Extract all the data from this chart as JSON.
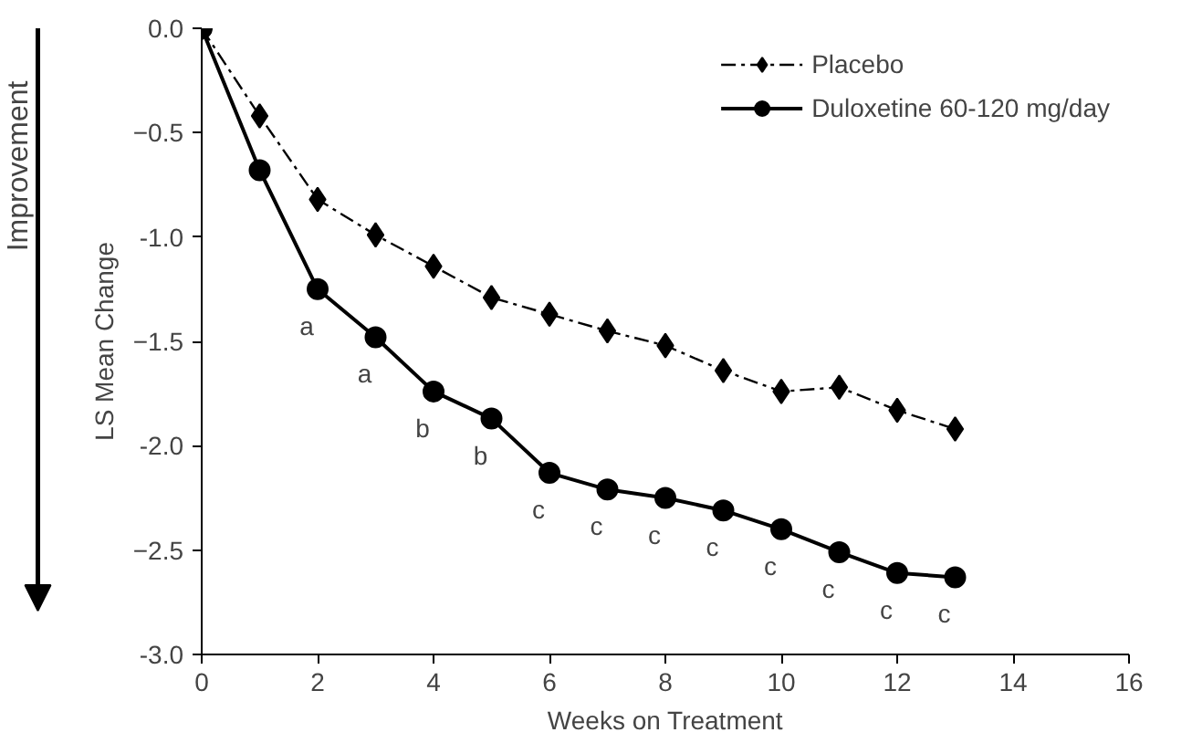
{
  "chart_data": {
    "type": "line",
    "xlabel": "Weeks on Treatment",
    "ylabel": "LS Mean Change",
    "x": [
      0,
      1,
      2,
      3,
      4,
      5,
      6,
      7,
      8,
      9,
      10,
      11,
      12,
      13
    ],
    "series": [
      {
        "name": "Placebo",
        "color": "#000000",
        "marker": "diamond",
        "line_style": "dashed",
        "values": [
          0,
          -0.42,
          -0.82,
          -0.99,
          -1.14,
          -1.29,
          -1.37,
          -1.45,
          -1.52,
          -1.64,
          -1.74,
          -1.72,
          -1.83,
          -1.92
        ]
      },
      {
        "name": "Duloxetine 60-120 mg/day",
        "color": "#000000",
        "marker": "circle",
        "line_style": "solid",
        "values": [
          0,
          -0.68,
          -1.25,
          -1.48,
          -1.74,
          -1.87,
          -2.13,
          -2.21,
          -2.25,
          -2.31,
          -2.4,
          -2.51,
          -2.61,
          -2.63
        ]
      }
    ],
    "xlim": [
      0,
      16
    ],
    "xticks": [
      0,
      2,
      4,
      6,
      8,
      10,
      12,
      14,
      16
    ],
    "ylim": [
      -3,
      0
    ],
    "yticks": [
      {
        "value": 0,
        "label": "0.0"
      },
      -0.5,
      {
        "value": -1,
        "label": "-1.0"
      },
      -1.5,
      {
        "value": -2,
        "label": "-2.0"
      },
      -2.5,
      {
        "value": -3,
        "label": "-3.0"
      }
    ],
    "grid": false,
    "legend": "top right",
    "annotations": [
      "Improvement",
      {
        "text": "a",
        "x": 2,
        "y": -1.25
      },
      {
        "text": "a",
        "x": 3,
        "y": -1.48
      },
      {
        "text": "b",
        "x": 4,
        "y": -1.74
      },
      {
        "text": "b",
        "x": 5,
        "y": -1.87
      },
      {
        "text": "c",
        "x": 6,
        "y": -2.13
      },
      {
        "text": "c",
        "x": 7,
        "y": -2.21
      },
      {
        "text": "c",
        "x": 8,
        "y": -2.25
      },
      {
        "text": "c",
        "x": 9,
        "y": -2.31
      },
      {
        "text": "c",
        "x": 10,
        "y": -2.4
      },
      {
        "text": "c",
        "x": 11,
        "y": -2.51
      },
      {
        "text": "c",
        "x": 12,
        "y": -2.61
      },
      {
        "text": "c",
        "x": 13,
        "y": -2.63
      }
    ]
  }
}
